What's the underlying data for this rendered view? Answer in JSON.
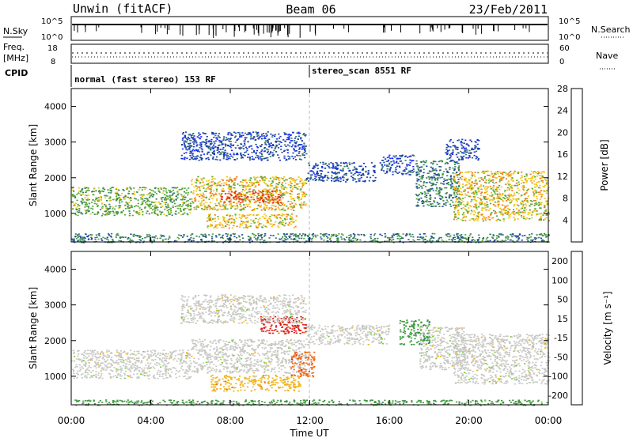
{
  "header": {
    "left": "Unwin (fitACF)",
    "center": "Beam 06",
    "right": "23/Feb/2011"
  },
  "strips": {
    "nsky_label": "N.Sky",
    "nsky_ticks": [
      "10^5",
      "10^0"
    ],
    "nsearch_label": "N.Search",
    "freq_label": "Freq.",
    "freq_unit": "[MHz]",
    "freq_ticks": [
      "18",
      "8"
    ],
    "nave_label": "Nave",
    "nave_ticks": [
      "60",
      "0"
    ],
    "cpid_label": "CPID",
    "cpid_segments": [
      {
        "label": "normal (fast stereo) 153 RF",
        "start": "00:00",
        "end": "12:00"
      },
      {
        "label": "stereo_scan 8551 RF",
        "start": "12:00",
        "end": "24:00"
      }
    ]
  },
  "chart_data": [
    {
      "type": "heatmap",
      "name": "power",
      "ylabel": "Slant Range [km]",
      "xlabel": "",
      "xlim": [
        0,
        24
      ],
      "ylim": [
        200,
        4500
      ],
      "yticks": [
        1000,
        2000,
        3000,
        4000
      ],
      "xticks": [
        "00:00",
        "04:00",
        "08:00",
        "12:00",
        "16:00",
        "20:00",
        "00:00"
      ],
      "colorbar": {
        "label": "Power [dB]",
        "ticks": [
          "4",
          "8",
          "12",
          "16",
          "20",
          "24",
          "28"
        ],
        "colors": [
          "#1428ff",
          "#1f44a8",
          "#3a7d62",
          "#52a838",
          "#f2c418",
          "#f07a1a",
          "#e82e12"
        ]
      },
      "regions": [
        {
          "t0": 0.0,
          "t1": 6.0,
          "r0": 950,
          "r1": 1750,
          "level": 14
        },
        {
          "t0": 6.0,
          "t1": 11.8,
          "r0": 1100,
          "r1": 2050,
          "level": 20
        },
        {
          "t0": 7.5,
          "t1": 10.5,
          "r0": 1300,
          "r1": 1650,
          "level": 26
        },
        {
          "t0": 6.8,
          "t1": 11.3,
          "r0": 600,
          "r1": 1000,
          "level": 18
        },
        {
          "t0": 5.5,
          "t1": 11.8,
          "r0": 2500,
          "r1": 3300,
          "level": 6
        },
        {
          "t0": 11.8,
          "t1": 15.3,
          "r0": 1900,
          "r1": 2450,
          "level": 8
        },
        {
          "t0": 15.5,
          "t1": 17.2,
          "r0": 2100,
          "r1": 2650,
          "level": 8
        },
        {
          "t0": 17.3,
          "t1": 19.5,
          "r0": 1200,
          "r1": 2500,
          "level": 10
        },
        {
          "t0": 19.2,
          "t1": 24.0,
          "r0": 800,
          "r1": 2200,
          "level": 20
        },
        {
          "t0": 18.8,
          "t1": 20.5,
          "r0": 2500,
          "r1": 3100,
          "level": 6
        },
        {
          "t0": 0.0,
          "t1": 24.0,
          "r0": 200,
          "r1": 450,
          "level": 10
        }
      ]
    },
    {
      "type": "heatmap",
      "name": "velocity",
      "ylabel": "Slant Range [km]",
      "xlabel": "Time UT",
      "xlim": [
        0,
        24
      ],
      "ylim": [
        200,
        4500
      ],
      "yticks": [
        1000,
        2000,
        3000,
        4000
      ],
      "xticks": [
        "00:00",
        "04:00",
        "08:00",
        "12:00",
        "16:00",
        "20:00",
        "00:00"
      ],
      "colorbar": {
        "label": "Velocity [m s⁻¹]",
        "ticks": [
          "200",
          "100",
          "50",
          "15",
          "-15",
          "-50",
          "-100",
          "-200"
        ],
        "colors": [
          "#1d36a8",
          "#2f6b8a",
          "#3e9a3c",
          "#76d030",
          "#c8c8c4",
          "#f2b41a",
          "#f06818",
          "#e01a12"
        ]
      },
      "regions": [
        {
          "t0": 0.0,
          "t1": 6.0,
          "r0": 950,
          "r1": 1750,
          "velocity": 0
        },
        {
          "t0": 6.0,
          "t1": 11.8,
          "r0": 1100,
          "r1": 2050,
          "velocity": 0
        },
        {
          "t0": 7.0,
          "t1": 11.5,
          "r0": 600,
          "r1": 1050,
          "velocity": -50
        },
        {
          "t0": 11.0,
          "t1": 12.2,
          "r0": 1000,
          "r1": 1700,
          "velocity": -80
        },
        {
          "t0": 9.5,
          "t1": 11.8,
          "r0": 2200,
          "r1": 2700,
          "velocity": -200
        },
        {
          "t0": 5.5,
          "t1": 11.8,
          "r0": 2500,
          "r1": 3300,
          "velocity": 0
        },
        {
          "t0": 11.8,
          "t1": 16.0,
          "r0": 1900,
          "r1": 2450,
          "velocity": 0
        },
        {
          "t0": 16.5,
          "t1": 18.0,
          "r0": 1900,
          "r1": 2600,
          "velocity": 40
        },
        {
          "t0": 17.5,
          "t1": 19.8,
          "r0": 1200,
          "r1": 2400,
          "velocity": 0
        },
        {
          "t0": 19.2,
          "t1": 24.0,
          "r0": 800,
          "r1": 2200,
          "velocity": 0
        },
        {
          "t0": 0.0,
          "t1": 24.0,
          "r0": 200,
          "r1": 350,
          "velocity": 30
        }
      ]
    }
  ]
}
